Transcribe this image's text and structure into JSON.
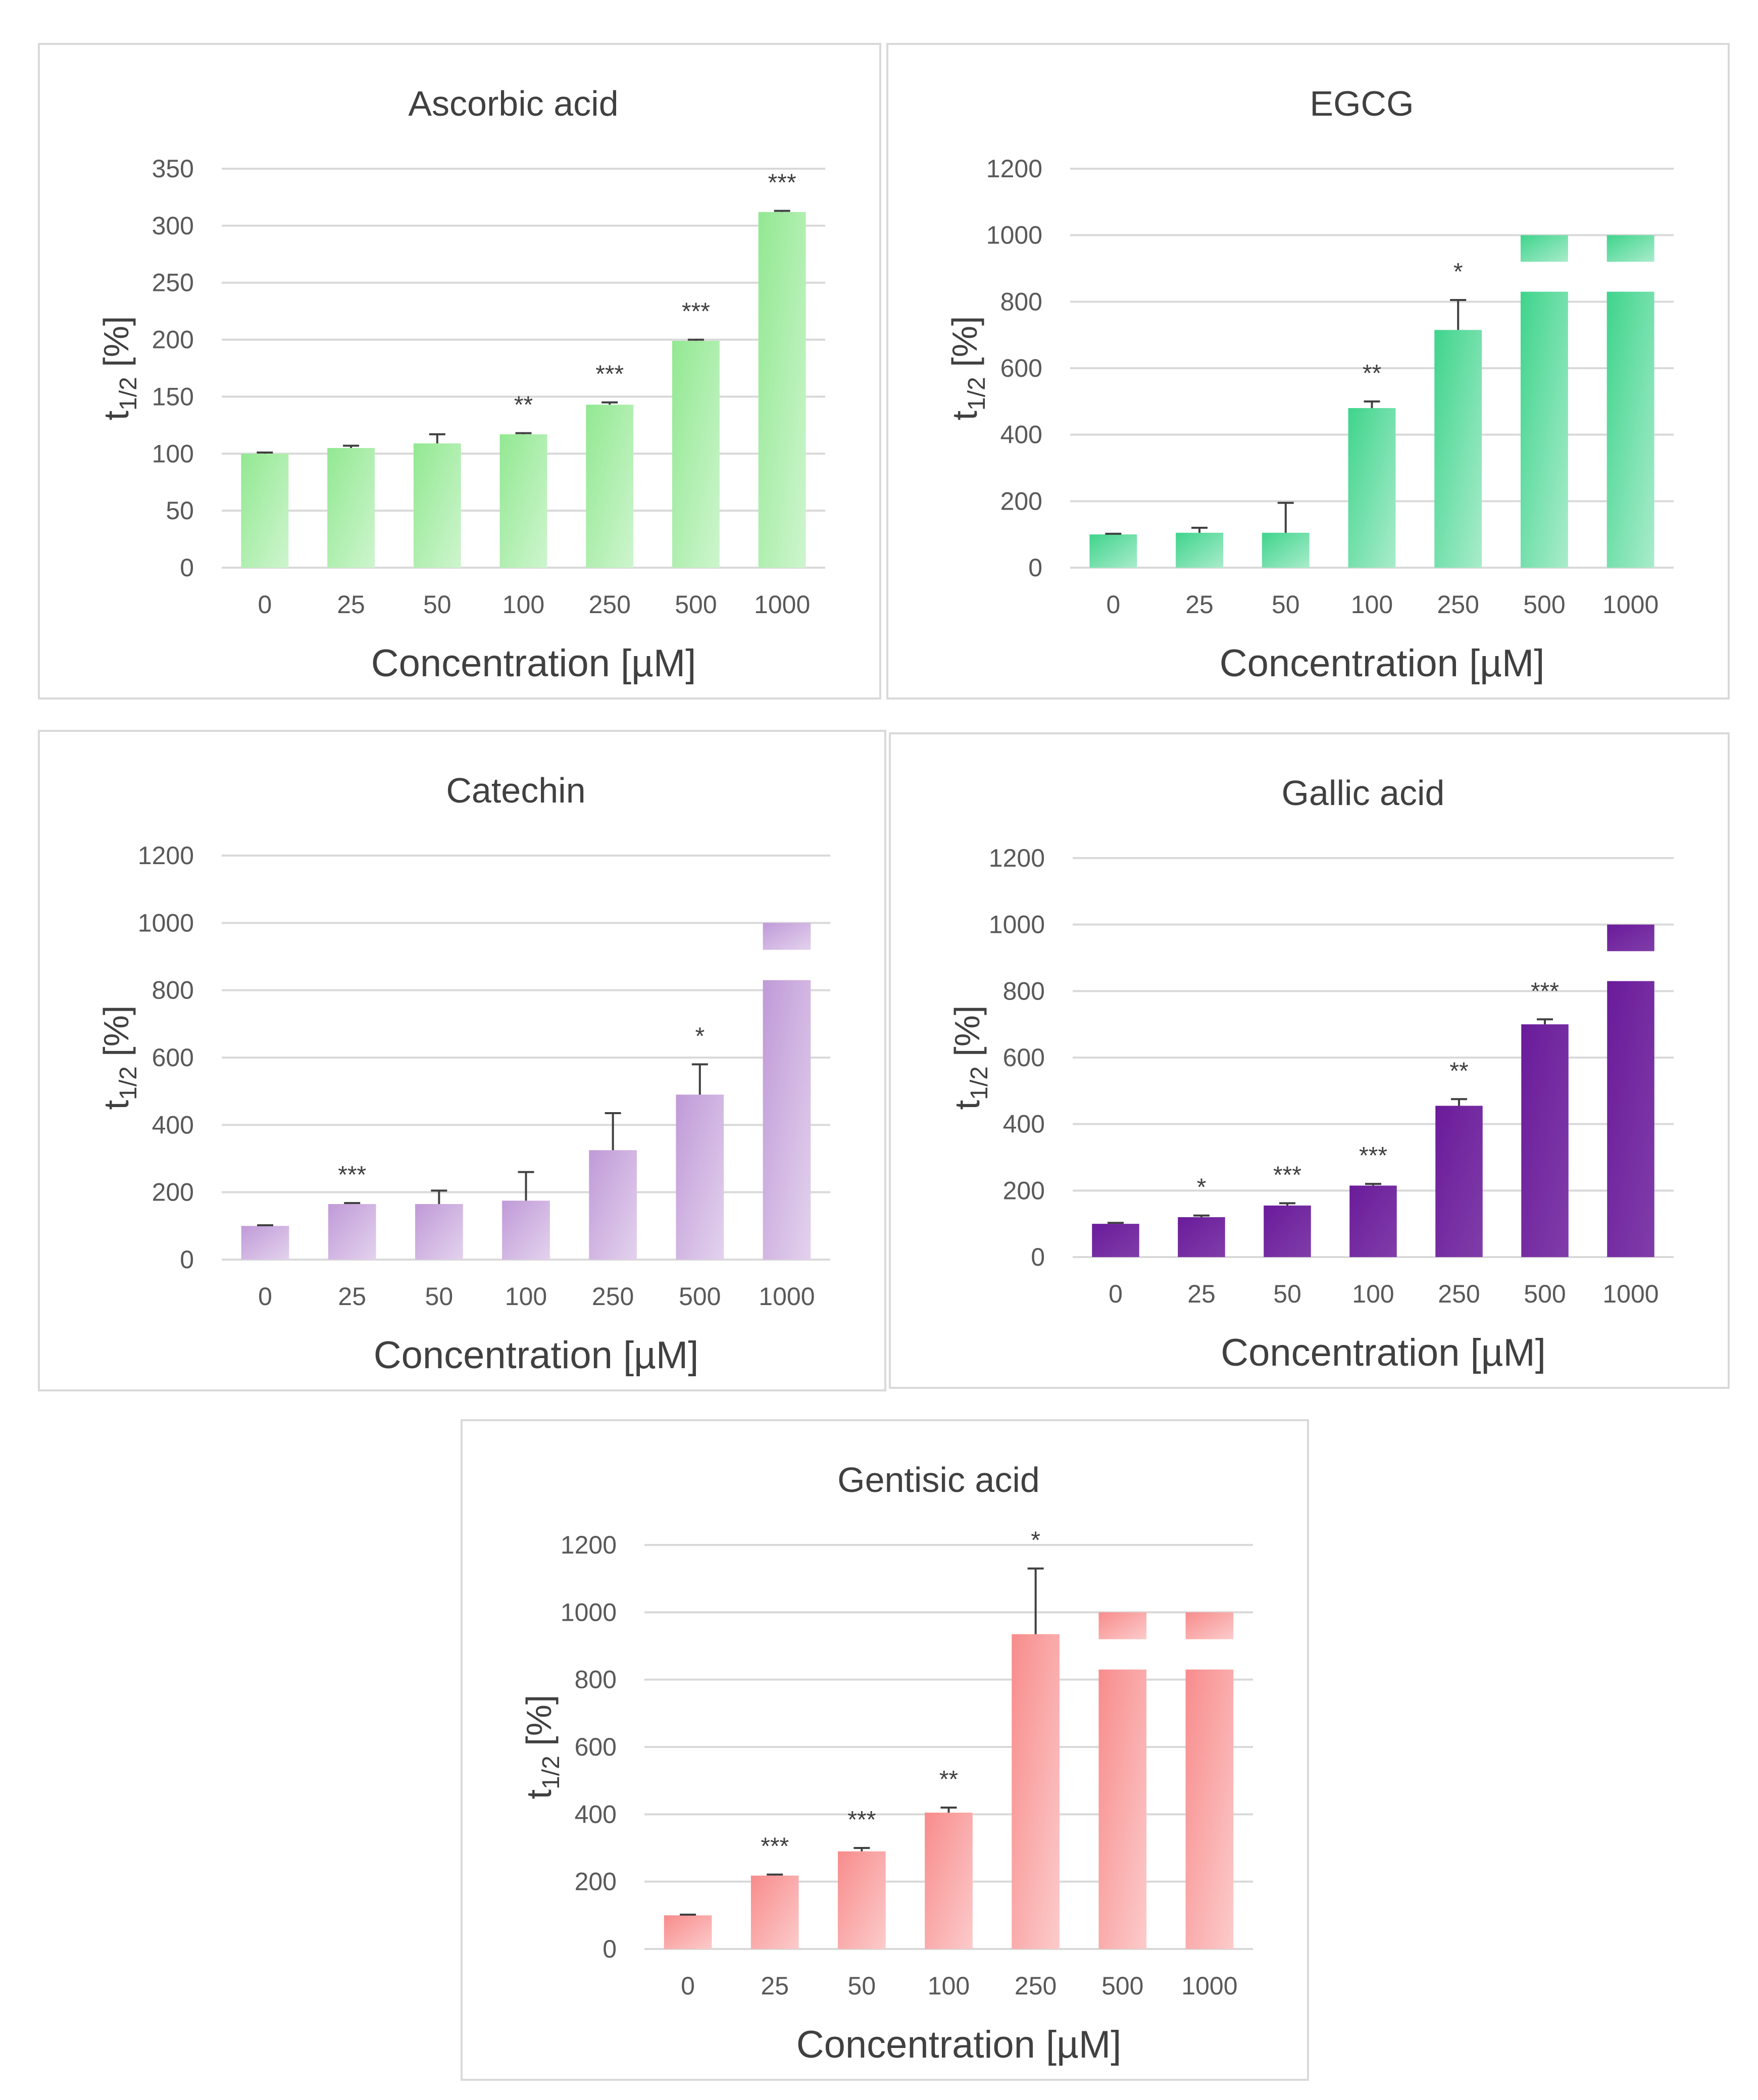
{
  "chart_data": [
    {
      "type": "bar",
      "title": "Ascorbic acid",
      "xlabel": "Concentration [µM]",
      "ylabel_main": "t",
      "ylabel_sub": "1/2",
      "ylabel_tail": " [%]",
      "categories": [
        "0",
        "25",
        "50",
        "100",
        "250",
        "500",
        "1000"
      ],
      "values": [
        100,
        105,
        109,
        117,
        143,
        199,
        312
      ],
      "errors": [
        1,
        2,
        8,
        1,
        2,
        1,
        1
      ],
      "significance": [
        "",
        "",
        "",
        "**",
        "***",
        "***",
        "***"
      ],
      "broken": [
        false,
        false,
        false,
        false,
        false,
        false,
        false
      ],
      "ylim": [
        0,
        350
      ],
      "yticks": [
        "0",
        "50",
        "100",
        "150",
        "200",
        "250",
        "300",
        "350"
      ],
      "color": "#92e892",
      "grid": true
    },
    {
      "type": "bar",
      "title": "EGCG",
      "xlabel": "Concentration [µM]",
      "ylabel_main": "t",
      "ylabel_sub": "1/2",
      "ylabel_tail": " [%]",
      "categories": [
        "0",
        "25",
        "50",
        "100",
        "250",
        "500",
        "1000"
      ],
      "values": [
        100,
        105,
        105,
        480,
        715,
        1000,
        1000
      ],
      "errors": [
        2,
        15,
        90,
        20,
        90,
        0,
        0
      ],
      "significance": [
        "",
        "",
        "",
        "**",
        "*",
        "",
        ""
      ],
      "broken": [
        false,
        false,
        false,
        false,
        false,
        true,
        true
      ],
      "ylim": [
        0,
        1200
      ],
      "yticks": [
        "0",
        "200",
        "400",
        "600",
        "800",
        "1000",
        "1200"
      ],
      "color": "#3fd48c",
      "grid": true
    },
    {
      "type": "bar",
      "title": "Catechin",
      "xlabel": "Concentration [µM]",
      "ylabel_main": "t",
      "ylabel_sub": "1/2",
      "ylabel_tail": " [%]",
      "categories": [
        "0",
        "25",
        "50",
        "100",
        "250",
        "500",
        "1000"
      ],
      "values": [
        100,
        165,
        165,
        175,
        325,
        490,
        1000
      ],
      "errors": [
        2,
        3,
        40,
        85,
        110,
        90,
        0
      ],
      "significance": [
        "",
        "***",
        "",
        "",
        "",
        "*",
        ""
      ],
      "broken": [
        false,
        false,
        false,
        false,
        false,
        false,
        true
      ],
      "ylim": [
        0,
        1200
      ],
      "yticks": [
        "0",
        "200",
        "400",
        "600",
        "800",
        "1000",
        "1200"
      ],
      "color": "#c09ad8",
      "grid": true
    },
    {
      "type": "bar",
      "title": "Gallic acid",
      "xlabel": "Concentration [µM]",
      "ylabel_main": "t",
      "ylabel_sub": "1/2",
      "ylabel_tail": " [%]",
      "categories": [
        "0",
        "25",
        "50",
        "100",
        "250",
        "500",
        "1000"
      ],
      "values": [
        100,
        120,
        155,
        215,
        455,
        700,
        1000
      ],
      "errors": [
        3,
        5,
        7,
        5,
        20,
        15,
        0
      ],
      "significance": [
        "",
        "*",
        "***",
        "***",
        "**",
        "***",
        ""
      ],
      "broken": [
        false,
        false,
        false,
        false,
        false,
        false,
        true
      ],
      "ylim": [
        0,
        1200
      ],
      "yticks": [
        "0",
        "200",
        "400",
        "600",
        "800",
        "1000",
        "1200"
      ],
      "color": "#6a1b9a",
      "grid": true
    },
    {
      "type": "bar",
      "title": "Gentisic acid",
      "xlabel": "Concentration [µM]",
      "ylabel_main": "t",
      "ylabel_sub": "1/2",
      "ylabel_tail": " [%]",
      "categories": [
        "0",
        "25",
        "50",
        "100",
        "250",
        "500",
        "1000"
      ],
      "values": [
        100,
        218,
        290,
        405,
        935,
        1000,
        1000
      ],
      "errors": [
        2,
        3,
        10,
        15,
        195,
        0,
        0
      ],
      "significance": [
        "",
        "***",
        "***",
        "**",
        "*",
        "",
        ""
      ],
      "broken": [
        false,
        false,
        false,
        false,
        false,
        true,
        true
      ],
      "ylim": [
        0,
        1200
      ],
      "yticks": [
        "0",
        "200",
        "400",
        "600",
        "800",
        "1000",
        "1200"
      ],
      "color": "#f88c8c",
      "grid": true
    }
  ]
}
